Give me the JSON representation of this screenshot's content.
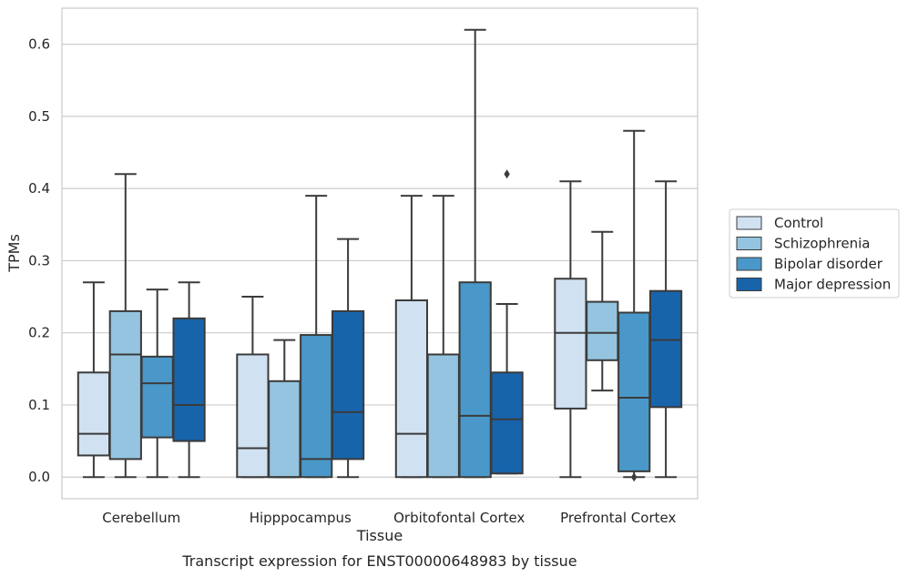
{
  "chart_data": {
    "type": "box",
    "xlabel": "Tissue",
    "ylabel": "TPMs",
    "caption": "Transcript expression for ENST00000648983 by tissue",
    "ylim": [
      -0.03,
      0.65
    ],
    "yticks": [
      "0.0",
      "0.1",
      "0.2",
      "0.3",
      "0.4",
      "0.5",
      "0.6"
    ],
    "ytick_values": [
      0,
      0.1,
      0.2,
      0.3,
      0.4,
      0.5,
      0.6
    ],
    "grid": "horizontal",
    "legend_position": "right",
    "categories": [
      "Cerebellum",
      "Hipppocampus",
      "Orbitofontal Cortex",
      "Prefrontal Cortex"
    ],
    "series": [
      {
        "name": "Control",
        "color": "#d0e1f2",
        "boxes": [
          {
            "whislo": 0.0,
            "q1": 0.03,
            "med": 0.06,
            "q3": 0.145,
            "whishi": 0.27,
            "fliers": []
          },
          {
            "whislo": 0.0,
            "q1": 0.0,
            "med": 0.04,
            "q3": 0.17,
            "whishi": 0.25,
            "fliers": []
          },
          {
            "whislo": 0.0,
            "q1": 0.0,
            "med": 0.06,
            "q3": 0.245,
            "whishi": 0.39,
            "fliers": []
          },
          {
            "whislo": 0.0,
            "q1": 0.095,
            "med": 0.2,
            "q3": 0.275,
            "whishi": 0.41,
            "fliers": []
          }
        ]
      },
      {
        "name": "Schizophrenia",
        "color": "#94c4df",
        "boxes": [
          {
            "whislo": 0.0,
            "q1": 0.025,
            "med": 0.17,
            "q3": 0.23,
            "whishi": 0.42,
            "fliers": []
          },
          {
            "whislo": 0.0,
            "q1": 0.0,
            "med": 0.0,
            "q3": 0.133,
            "whishi": 0.19,
            "fliers": []
          },
          {
            "whislo": 0.0,
            "q1": 0.0,
            "med": 0.17,
            "q3": 0.17,
            "whishi": 0.39,
            "fliers": []
          },
          {
            "whislo": 0.12,
            "q1": 0.162,
            "med": 0.2,
            "q3": 0.243,
            "whishi": 0.34,
            "fliers": []
          }
        ]
      },
      {
        "name": "Bipolar disorder",
        "color": "#4a98c9",
        "boxes": [
          {
            "whislo": 0.0,
            "q1": 0.055,
            "med": 0.13,
            "q3": 0.167,
            "whishi": 0.26,
            "fliers": []
          },
          {
            "whislo": 0.0,
            "q1": 0.0,
            "med": 0.025,
            "q3": 0.197,
            "whishi": 0.39,
            "fliers": []
          },
          {
            "whislo": 0.0,
            "q1": 0.0,
            "med": 0.085,
            "q3": 0.27,
            "whishi": 0.62,
            "fliers": []
          },
          {
            "whislo": 0.0,
            "q1": 0.008,
            "med": 0.11,
            "q3": 0.228,
            "whishi": 0.48,
            "fliers": [
              0.0
            ]
          }
        ]
      },
      {
        "name": "Major depression",
        "color": "#1764ab",
        "boxes": [
          {
            "whislo": 0.0,
            "q1": 0.05,
            "med": 0.1,
            "q3": 0.22,
            "whishi": 0.27,
            "fliers": []
          },
          {
            "whislo": 0.0,
            "q1": 0.025,
            "med": 0.09,
            "q3": 0.23,
            "whishi": 0.33,
            "fliers": []
          },
          {
            "whislo": 0.005,
            "q1": 0.005,
            "med": 0.08,
            "q3": 0.145,
            "whishi": 0.24,
            "fliers": [
              0.42
            ]
          },
          {
            "whislo": 0.0,
            "q1": 0.097,
            "med": 0.19,
            "q3": 0.258,
            "whishi": 0.41,
            "fliers": []
          }
        ]
      }
    ]
  }
}
